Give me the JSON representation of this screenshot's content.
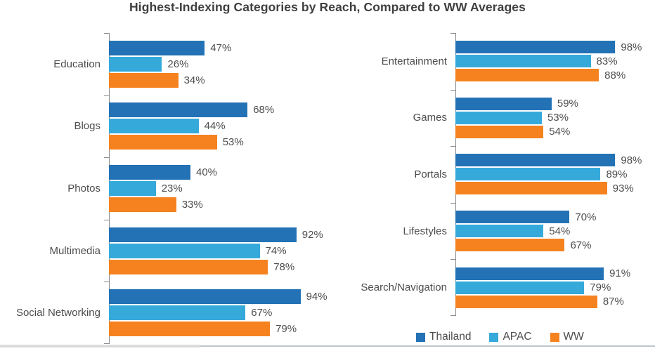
{
  "title": "Highest-Indexing Categories by Reach, Compared to WW Averages",
  "colors": {
    "thailand": "#2272B5",
    "apac": "#36A9DB",
    "ww": "#F5821F",
    "axis": "#8C8C8C",
    "title_text": "#3F3F3F",
    "label_text": "#4D4D4D"
  },
  "legend": {
    "position": "bottom-right",
    "items": [
      {
        "label": "Thailand",
        "color": "#2272B5"
      },
      {
        "label": "APAC",
        "color": "#36A9DB"
      },
      {
        "label": "WW",
        "color": "#F5821F"
      }
    ]
  },
  "chart_data": [
    {
      "type": "bar",
      "orientation": "horizontal",
      "panel": "left",
      "categories": [
        "Education",
        "Blogs",
        "Photos",
        "Multimedia",
        "Social Networking"
      ],
      "series": [
        {
          "name": "Thailand",
          "color": "#2272B5",
          "values": [
            47,
            68,
            40,
            92,
            94
          ]
        },
        {
          "name": "APAC",
          "color": "#36A9DB",
          "values": [
            26,
            44,
            23,
            74,
            67
          ]
        },
        {
          "name": "WW",
          "color": "#F5821F",
          "values": [
            34,
            53,
            33,
            78,
            79
          ]
        }
      ],
      "value_suffix": "%",
      "xlim": [
        0,
        100
      ],
      "grid": false,
      "data_labels": true
    },
    {
      "type": "bar",
      "orientation": "horizontal",
      "panel": "right",
      "categories": [
        "Entertainment",
        "Games",
        "Portals",
        "Lifestyles",
        "Search/Navigation"
      ],
      "series": [
        {
          "name": "Thailand",
          "color": "#2272B5",
          "values": [
            98,
            59,
            98,
            70,
            91
          ]
        },
        {
          "name": "APAC",
          "color": "#36A9DB",
          "values": [
            83,
            53,
            89,
            54,
            79
          ]
        },
        {
          "name": "WW",
          "color": "#F5821F",
          "values": [
            88,
            54,
            93,
            67,
            87
          ]
        }
      ],
      "value_suffix": "%",
      "xlim": [
        0,
        100
      ],
      "grid": false,
      "data_labels": true
    }
  ]
}
